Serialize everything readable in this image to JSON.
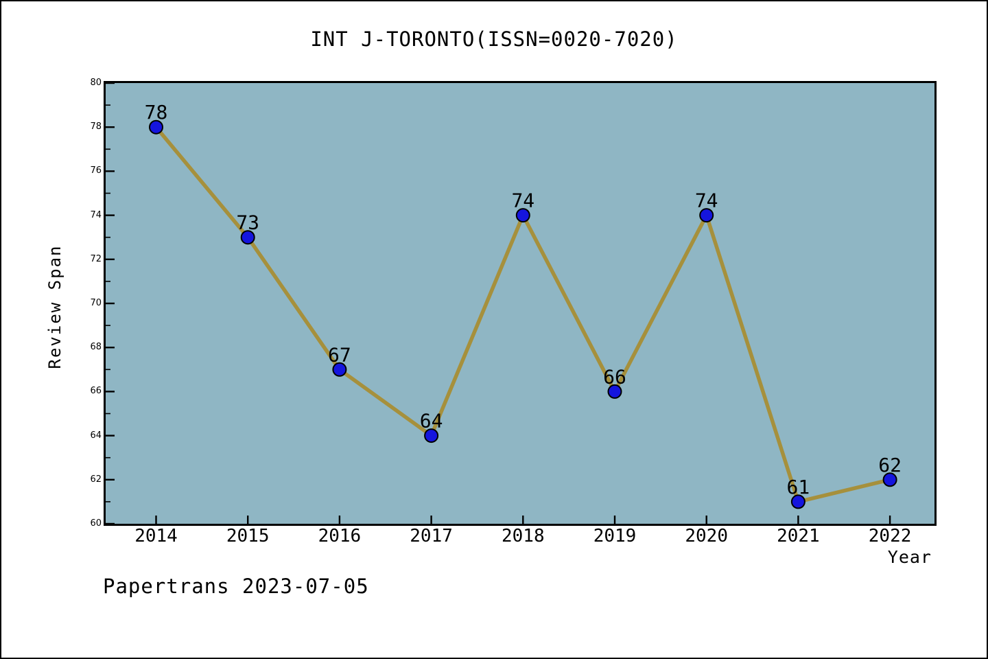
{
  "chart_title": "INT J-TORONTO(ISSN=0020-7020)",
  "caption": "Papertrans 2023-07-05",
  "axes": {
    "x_label": "Year",
    "y_label": "Review Span"
  },
  "chart_data": {
    "type": "line",
    "title": "INT J-TORONTO(ISSN=0020-7020)",
    "x": [
      2014,
      2015,
      2016,
      2017,
      2018,
      2019,
      2020,
      2021,
      2022
    ],
    "values": [
      78,
      73,
      67,
      64,
      74,
      66,
      74,
      61,
      62
    ],
    "point_labels": [
      "78",
      "73",
      "67",
      "64",
      "74",
      "66",
      "74",
      "61",
      "62"
    ],
    "xlabel": "Year",
    "ylabel": "Review Span",
    "ylim": [
      60,
      80
    ],
    "y_major_tick_step": 2,
    "y_minor_tick_step": 1,
    "y_major_ticks": [
      60,
      62,
      64,
      66,
      68,
      70,
      72,
      74,
      76,
      78,
      80
    ],
    "grid": false,
    "legend": null,
    "marker": "circle",
    "colors": {
      "plot_background": "#8FB6C4",
      "line": "#A6903C",
      "marker_fill": "#1515DE",
      "marker_edge": "#000000",
      "frame": "#000000",
      "text": "#000000"
    }
  }
}
